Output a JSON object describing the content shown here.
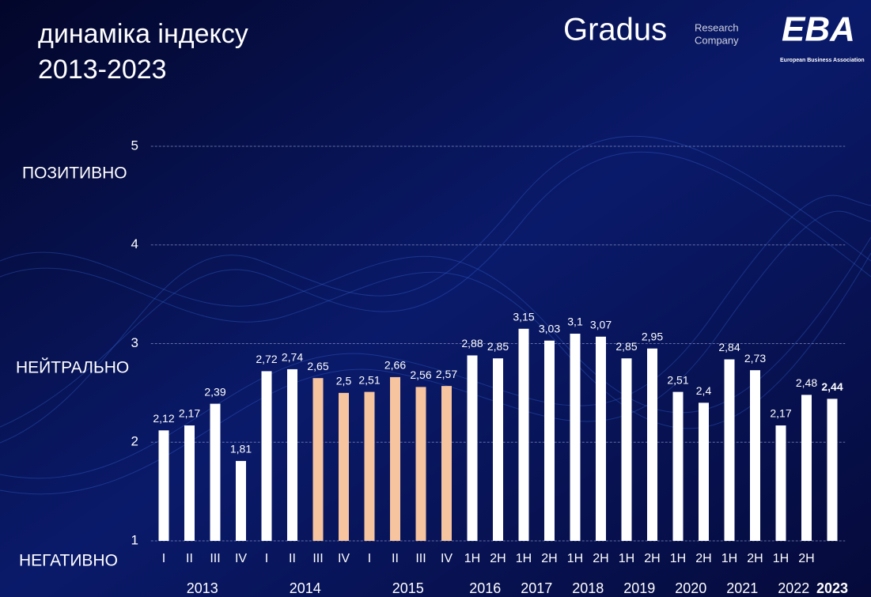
{
  "chart_data": {
    "type": "bar",
    "title": [
      "динаміка індексу",
      "2013-2023"
    ],
    "brand": {
      "name": "Gradus",
      "sub": [
        "Research",
        "Company"
      ],
      "partner": "EBA",
      "partner_sub": "European Business Association"
    },
    "scale_labels": [
      "ПОЗИТИВНО",
      "НЕЙТРАЛЬНО",
      "НЕГАТИВНО"
    ],
    "categories": [
      "I",
      "II",
      "III",
      "IV",
      "I",
      "II",
      "III",
      "IV",
      "I",
      "II",
      "III",
      "IV",
      "1H",
      "2H",
      "1H",
      "2H",
      "1H",
      "2H",
      "1H",
      "2H",
      "1H",
      "2H",
      "1H",
      "2H",
      "1H",
      "2H",
      null
    ],
    "year_labels": [
      "2013",
      "2014",
      "2015",
      "2016",
      "2017",
      "2018",
      "2019",
      "2020",
      "2021",
      "2022",
      "2023"
    ],
    "values": [
      2.12,
      2.17,
      2.39,
      1.81,
      2.72,
      2.74,
      2.65,
      2.5,
      2.51,
      2.66,
      2.56,
      2.57,
      2.88,
      2.85,
      3.15,
      3.03,
      3.1,
      3.07,
      2.85,
      2.95,
      2.51,
      2.4,
      2.84,
      2.73,
      2.17,
      2.48,
      2.44
    ],
    "value_labels": [
      "2,12",
      "2,17",
      "2,39",
      "1,81",
      "2,72",
      "2,74",
      "2,65",
      "2,5",
      "2,51",
      "2,66",
      "2,56",
      "2,57",
      "2,88",
      "2,85",
      "3,15",
      "3,03",
      "3,1",
      "3,07",
      "2,85",
      "2,95",
      "2,51",
      "2,4",
      "2,84",
      "2,73",
      "2,17",
      "2,48",
      "2,44"
    ],
    "colors": [
      "#ffffff",
      "#ffffff",
      "#ffffff",
      "#ffffff",
      "#ffffff",
      "#ffffff",
      "#f7c4a0",
      "#f7c4a0",
      "#f7c4a0",
      "#f7c4a0",
      "#f7c4a0",
      "#f7c4a0",
      "#ffffff",
      "#ffffff",
      "#ffffff",
      "#ffffff",
      "#ffffff",
      "#ffffff",
      "#ffffff",
      "#ffffff",
      "#ffffff",
      "#ffffff",
      "#ffffff",
      "#ffffff",
      "#ffffff",
      "#ffffff",
      "#ffffff"
    ],
    "value_label_colors": [
      "#ffffff",
      "#ffffff",
      "#ffffff",
      "#ffffff",
      "#ffffff",
      "#ffffff",
      "#ffffff",
      "#ffffff",
      "#ffffff",
      "#ffffff",
      "#ffffff",
      "#ffffff",
      "#ffffff",
      "#ffffff",
      "#ffffff",
      "#ffffff",
      "#ffffff",
      "#ffffff",
      "#ffffff",
      "#ffffff",
      "#ffffff",
      "#ffffff",
      "#ffffff",
      "#ffffff",
      "#ffffff",
      "#ffffff",
      "#f5c400"
    ],
    "ylim": [
      1,
      5
    ],
    "yticks": [
      1,
      2,
      3,
      4,
      5
    ],
    "grid": true
  }
}
